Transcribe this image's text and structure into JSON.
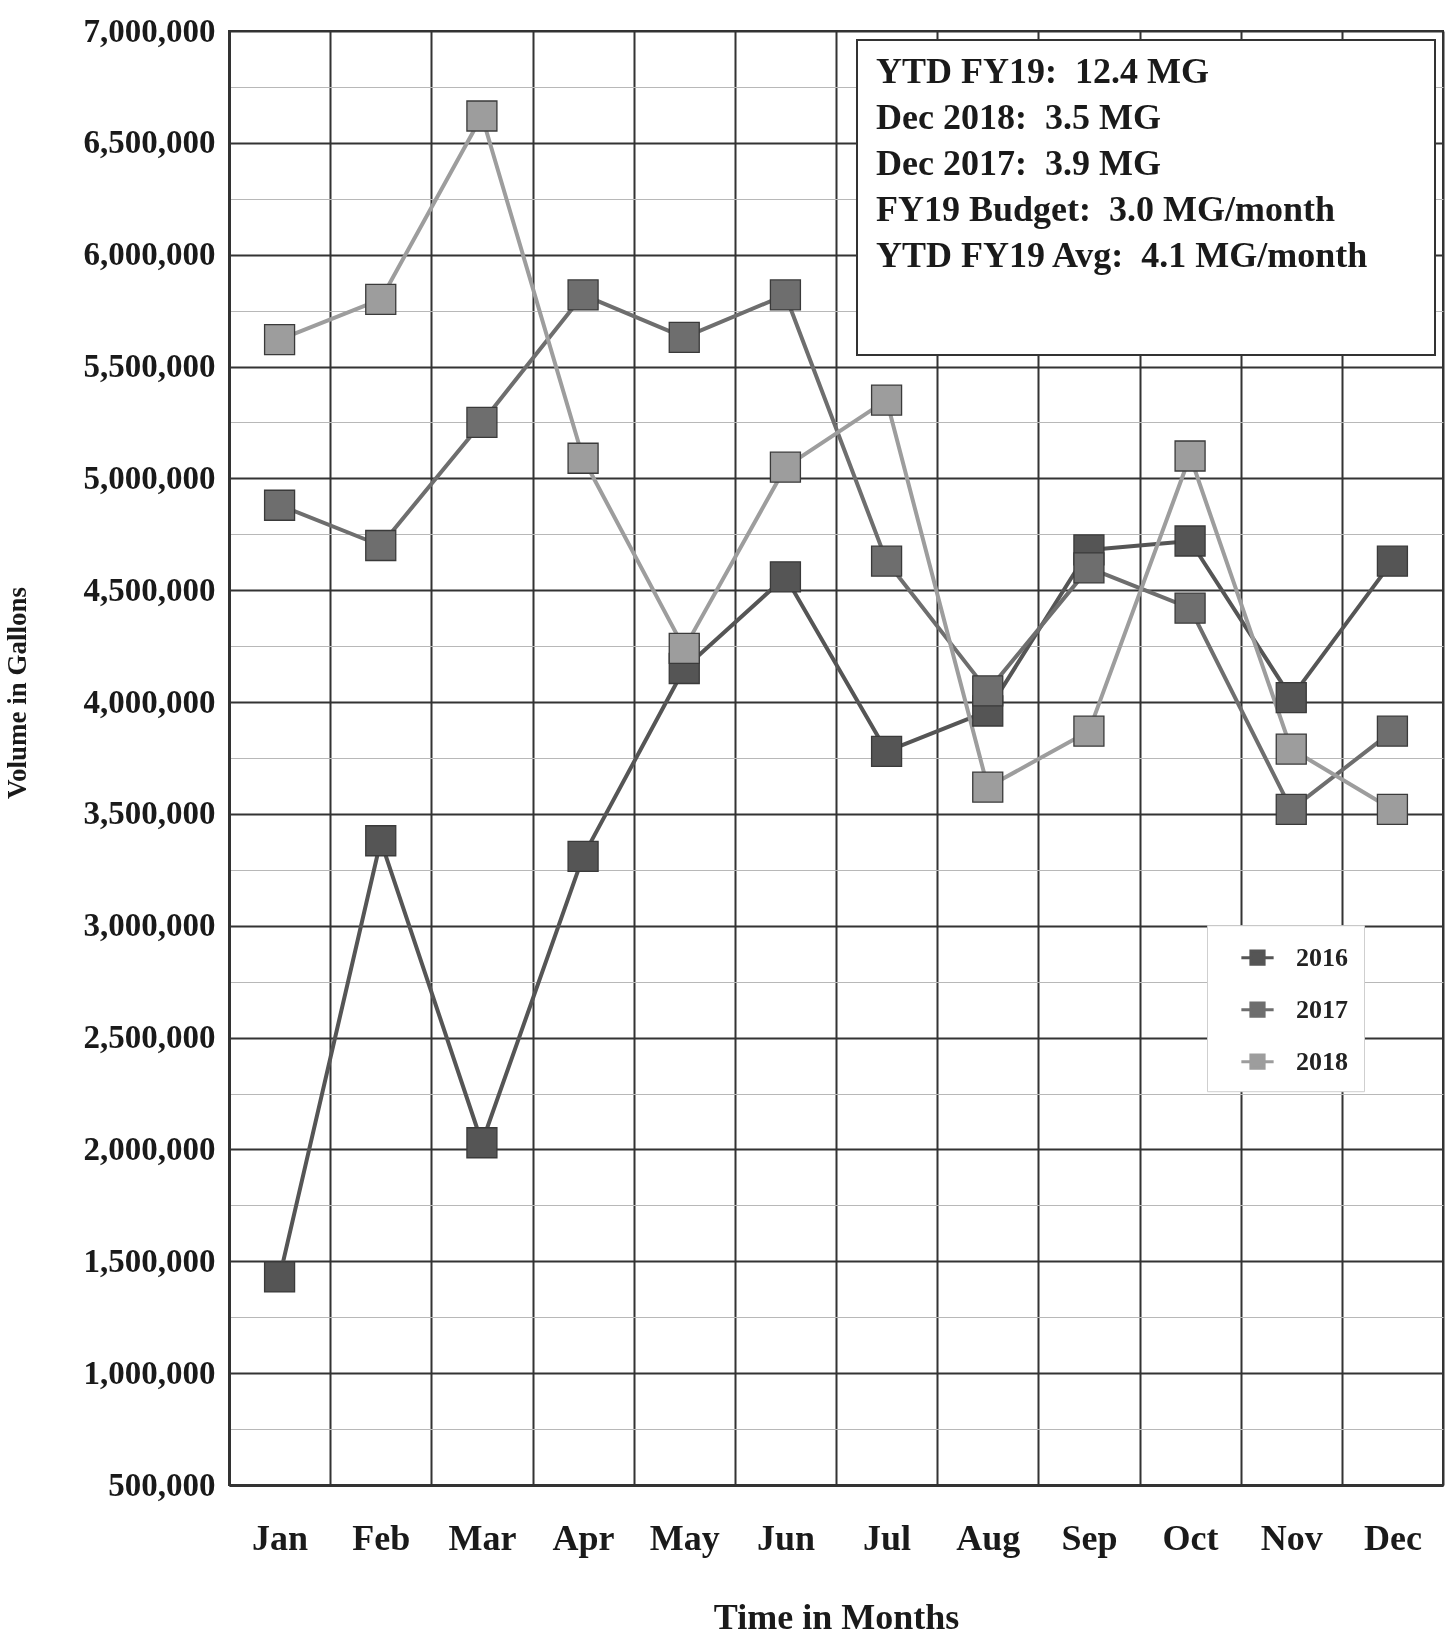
{
  "chart_data": {
    "type": "line",
    "xlabel": "Time in Months",
    "ylabel": "Volume in Gallons",
    "categories": [
      "Jan",
      "Feb",
      "Mar",
      "Apr",
      "May",
      "Jun",
      "Jul",
      "Aug",
      "Sep",
      "Oct",
      "Nov",
      "Dec"
    ],
    "series": [
      {
        "name": "2016",
        "color": "#555555",
        "values": [
          1430000,
          3380000,
          2030000,
          3310000,
          4150000,
          4560000,
          3780000,
          3960000,
          4680000,
          4720000,
          4020000,
          4630000
        ]
      },
      {
        "name": "2017",
        "color": "#6e6e6e",
        "values": [
          4880000,
          4700000,
          5250000,
          5820000,
          5630000,
          5820000,
          4630000,
          4050000,
          4600000,
          4420000,
          3520000,
          3870000
        ]
      },
      {
        "name": "2018",
        "color": "#9d9d9d",
        "values": [
          5620000,
          5800000,
          6620000,
          5090000,
          4240000,
          5050000,
          5350000,
          3620000,
          3870000,
          5100000,
          3790000,
          3520000
        ]
      }
    ],
    "ylim": [
      500000,
      7000000
    ],
    "yticks": [
      {
        "value": 500000,
        "label": "500,000"
      },
      {
        "value": 750000,
        "label": null
      },
      {
        "value": 1000000,
        "label": "1,000,000"
      },
      {
        "value": 1250000,
        "label": null
      },
      {
        "value": 1500000,
        "label": "1,500,000"
      },
      {
        "value": 1750000,
        "label": null
      },
      {
        "value": 2000000,
        "label": "2,000,000"
      },
      {
        "value": 2250000,
        "label": null
      },
      {
        "value": 2500000,
        "label": "2,500,000"
      },
      {
        "value": 2750000,
        "label": null
      },
      {
        "value": 3000000,
        "label": "3,000,000"
      },
      {
        "value": 3250000,
        "label": null
      },
      {
        "value": 3500000,
        "label": "3,500,000"
      },
      {
        "value": 3750000,
        "label": null
      },
      {
        "value": 4000000,
        "label": "4,000,000"
      },
      {
        "value": 4250000,
        "label": null
      },
      {
        "value": 4500000,
        "label": "4,500,000"
      },
      {
        "value": 4750000,
        "label": null
      },
      {
        "value": 5000000,
        "label": "5,000,000"
      },
      {
        "value": 5250000,
        "label": null
      },
      {
        "value": 5500000,
        "label": "5,500,000"
      },
      {
        "value": 5750000,
        "label": null
      },
      {
        "value": 6000000,
        "label": "6,000,000"
      },
      {
        "value": 6250000,
        "label": null
      },
      {
        "value": 6500000,
        "label": "6,500,000"
      },
      {
        "value": 6750000,
        "label": null
      },
      {
        "value": 7000000,
        "label": "7,000,000"
      }
    ],
    "grid": true,
    "legend": "right",
    "marker": "square",
    "line_style": "solid",
    "annotations": [
      "YTD FY19:  12.4 MG",
      "Dec 2018:  3.5 MG",
      "Dec 2017:  3.9 MG",
      "FY19 Budget:  3.0 MG/month",
      "YTD FY19 Avg:  4.1 MG/month"
    ]
  }
}
